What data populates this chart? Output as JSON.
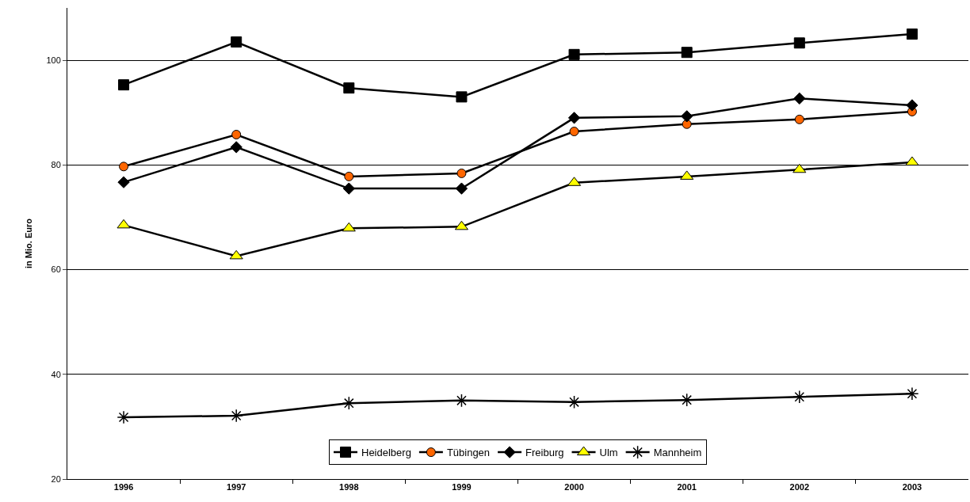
{
  "chart_data": {
    "type": "line",
    "ylabel": "in Mio. Euro",
    "categories": [
      "1996",
      "1997",
      "1998",
      "1999",
      "2000",
      "2001",
      "2002",
      "2003"
    ],
    "series": [
      {
        "name": "Heidelberg",
        "color": "#000000",
        "marker": "square",
        "values": [
          95.3,
          103.5,
          94.7,
          93.0,
          101.1,
          101.5,
          103.3,
          105.0
        ]
      },
      {
        "name": "Tübingen",
        "color": "#ff6600",
        "marker": "circle",
        "values": [
          79.7,
          85.8,
          77.8,
          78.4,
          86.4,
          87.8,
          88.7,
          90.2
        ]
      },
      {
        "name": "Freiburg",
        "color": "#000000",
        "marker": "diamond",
        "values": [
          76.7,
          83.4,
          75.5,
          75.5,
          89.0,
          89.3,
          92.7,
          91.4
        ]
      },
      {
        "name": "Ulm",
        "color": "#ffff00",
        "marker": "triangle",
        "values": [
          68.5,
          62.6,
          67.9,
          68.2,
          76.6,
          77.8,
          79.1,
          80.5
        ]
      },
      {
        "name": "Mannheim",
        "color": "#000000",
        "marker": "cross",
        "values": [
          31.8,
          32.1,
          34.5,
          35.0,
          34.7,
          35.1,
          35.7,
          36.3
        ]
      }
    ],
    "ylim": [
      20,
      110
    ],
    "yticks": [
      20,
      40,
      60,
      80,
      100
    ],
    "grid": "y",
    "legend": "bottom",
    "line_style": "solid"
  }
}
